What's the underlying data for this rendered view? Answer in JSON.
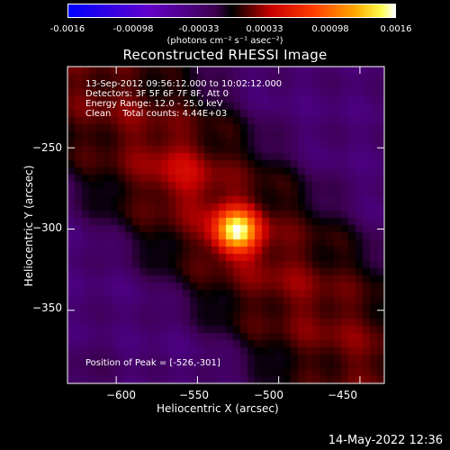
{
  "colorbar": {
    "ticks": [
      "-0.0016",
      "-0.00098",
      "-0.00033",
      "0.00033",
      "0.00098",
      "0.0016"
    ],
    "units": "(photons cm⁻² s⁻¹ asec⁻²)",
    "range": [
      -0.0016,
      0.0016
    ]
  },
  "chart_data": {
    "type": "heatmap",
    "title": "Reconstructed RHESSI Image",
    "xlabel": "Heliocentric X (arcsec)",
    "ylabel": "Heliocentric Y (arcsec)",
    "xlim": [
      -630,
      -435
    ],
    "ylim": [
      -395,
      -200
    ],
    "xticks": [
      -600,
      -550,
      -500,
      -450
    ],
    "yticks": [
      -250,
      -300,
      -350
    ],
    "xtick_labels": [
      "−600",
      "−550",
      "−500",
      "−450"
    ],
    "ytick_labels": [
      "−250",
      "−300",
      "−350"
    ],
    "peak": [
      -526,
      -301
    ],
    "annotations": {
      "time": "13-Sep-2012 09:56:12.000 to 10:02:12.000",
      "detectors": "Detectors: 3F 5F 6F 7F 8F, Att 0",
      "energy": "Energy Range: 12.0 - 25.0 keV",
      "clean": "Clean    Total counts: 4.44E+03",
      "peak_label": "Position of Peak = [-526,-301]"
    }
  },
  "footer": {
    "timestamp": "14-May-2022 12:36"
  }
}
